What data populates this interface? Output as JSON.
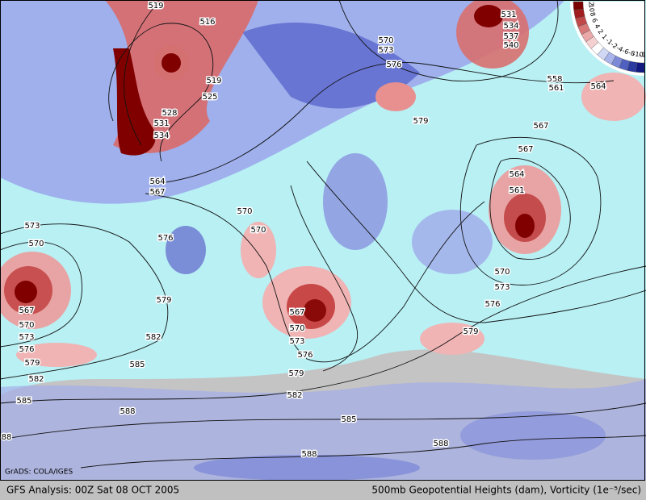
{
  "map": {
    "credit": "GrADS: COLA/IGES",
    "colorbar_labels": [
      "12",
      "10",
      "8",
      "6",
      "4",
      "2",
      "1",
      "-1",
      "-2",
      "-4",
      "-6",
      "-8",
      "-10",
      "-12"
    ],
    "contour_labels": [
      "519",
      "516",
      "519",
      "525",
      "528",
      "531",
      "534",
      "564",
      "567",
      "570",
      "573",
      "570",
      "567",
      "570",
      "573",
      "576",
      "579",
      "582",
      "585",
      "588",
      "88",
      "576",
      "579",
      "582",
      "585",
      "570",
      "567",
      "570",
      "573",
      "576",
      "579",
      "582",
      "585",
      "588",
      "588",
      "579",
      "576",
      "573",
      "570",
      "561",
      "564",
      "567",
      "567",
      "564",
      "561",
      "558",
      "531",
      "534",
      "537",
      "540",
      "576",
      "573",
      "570",
      "579"
    ]
  },
  "footer": {
    "left": "GFS Analysis: 00Z Sat 08 OCT 2005",
    "right": "500mb Geopotential Heights (dam), Vorticity (1e⁻⁵/sec)"
  }
}
